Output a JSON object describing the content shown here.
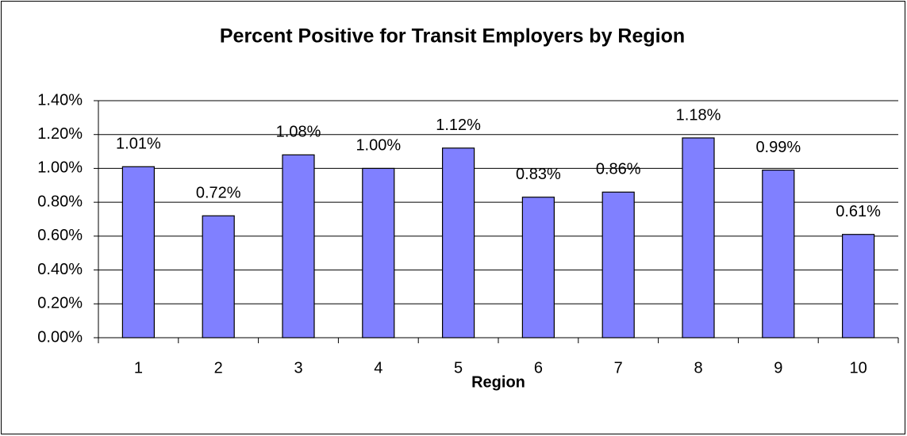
{
  "chart_data": {
    "type": "bar",
    "title": "Percent Positive for Transit Employers by Region",
    "x_label": "Region",
    "categories": [
      "1",
      "2",
      "3",
      "4",
      "5",
      "6",
      "7",
      "8",
      "9",
      "10"
    ],
    "values": [
      1.01,
      0.72,
      1.08,
      1.0,
      1.12,
      0.83,
      0.86,
      1.18,
      0.99,
      0.61
    ],
    "value_labels": [
      "1.01%",
      "0.72%",
      "1.08%",
      "1.00%",
      "1.12%",
      "0.83%",
      "0.86%",
      "1.18%",
      "0.99%",
      "0.61%"
    ],
    "color": "#8080ff",
    "ylim": [
      0,
      1.4
    ],
    "yticks": [
      {
        "value": 0,
        "label": "0.00%"
      },
      {
        "value": 0.2,
        "label": "0.20%"
      },
      {
        "value": 0.4,
        "label": "0.40%"
      },
      {
        "value": 0.6,
        "label": "0.60%"
      },
      {
        "value": 0.8,
        "label": "0.80%"
      },
      {
        "value": 1.0,
        "label": "1.00%"
      },
      {
        "value": 1.2,
        "label": "1.20%"
      },
      {
        "value": 1.4,
        "label": "1.40%"
      }
    ],
    "grid": true
  }
}
